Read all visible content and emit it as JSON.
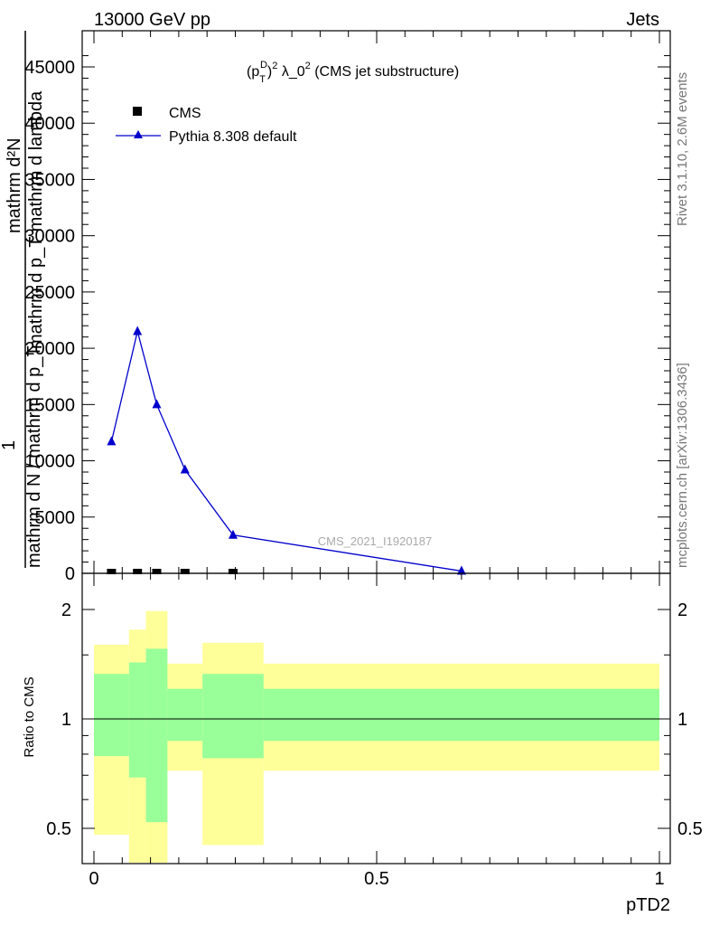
{
  "header": {
    "left": "13000 GeV pp",
    "right": "Jets"
  },
  "side_labels": {
    "rivet": "Rivet 3.1.10,  2.6M events",
    "mcplots": "mcplots.cern.ch [arXiv:1306.3436]"
  },
  "watermark": "CMS_2021_I1920187",
  "chart_data": [
    {
      "type": "line",
      "title": "(p_T^D)^2 λ_0^2 (CMS jet substructure)",
      "ylabel_lines": [
        "mathrm d²N",
        "mathrm d p_T mathrm d lambda",
        "1",
        "mathrm d N / mathrm d p_T"
      ],
      "ylim": [
        0,
        45000
      ],
      "xlim": [
        0,
        1
      ],
      "yticks": [
        "0",
        "5000",
        "10000",
        "15000",
        "20000",
        "25000",
        "30000",
        "35000",
        "40000",
        "45000"
      ],
      "legend_position": "top-left",
      "series": [
        {
          "name": "CMS",
          "marker": "square",
          "color": "#000000",
          "x": [
            0.031,
            0.077,
            0.111,
            0.161,
            0.246
          ],
          "y": [
            0,
            0,
            0,
            0,
            0
          ]
        },
        {
          "name": "Pythia 8.308 default",
          "marker": "triangle",
          "color": "#0000cc",
          "x": [
            0.031,
            0.077,
            0.111,
            0.161,
            0.246,
            0.65
          ],
          "y": [
            11700,
            21500,
            15000,
            9200,
            3400,
            200
          ]
        }
      ]
    },
    {
      "type": "area",
      "ylabel": "Ratio to CMS",
      "xlabel": "pTD2",
      "ylim": [
        0.35,
        2.25
      ],
      "xlim": [
        0,
        1
      ],
      "yticks": [
        "0.5",
        "1",
        "2"
      ],
      "xticks": [
        "0",
        "0.5",
        "1"
      ],
      "bins": [
        {
          "x0": 0.0,
          "x1": 0.062,
          "inner": [
            0.79,
            1.33
          ],
          "outer": [
            0.48,
            1.6
          ]
        },
        {
          "x0": 0.062,
          "x1": 0.092,
          "inner": [
            0.69,
            1.43
          ],
          "outer": [
            0.35,
            1.76
          ]
        },
        {
          "x0": 0.092,
          "x1": 0.13,
          "inner": [
            0.52,
            1.56
          ],
          "outer": [
            0.35,
            1.98
          ]
        },
        {
          "x0": 0.13,
          "x1": 0.192,
          "inner": [
            0.87,
            1.21
          ],
          "outer": [
            0.72,
            1.42
          ]
        },
        {
          "x0": 0.192,
          "x1": 0.3,
          "inner": [
            0.78,
            1.33
          ],
          "outer": [
            0.45,
            1.62
          ]
        },
        {
          "x0": 0.3,
          "x1": 1.0,
          "inner": [
            0.87,
            1.21
          ],
          "outer": [
            0.72,
            1.42
          ]
        }
      ],
      "colors": {
        "inner": "#99ff99",
        "outer": "#ffff99"
      }
    }
  ]
}
